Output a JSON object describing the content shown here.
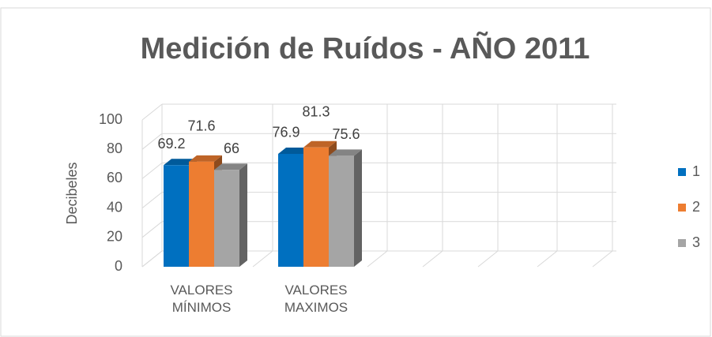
{
  "chart_data": {
    "type": "bar3d",
    "title": "Medición de Ruídos - AÑO 2011",
    "y_label": "Decibeles",
    "categories": [
      "VALORES MÍNIMOS",
      "VALORES MAXIMOS"
    ],
    "series": [
      {
        "name": "1",
        "color": "#0070c0",
        "values": [
          69.2,
          76.9
        ]
      },
      {
        "name": "2",
        "color": "#ed7d31",
        "values": [
          71.6,
          81.3
        ]
      },
      {
        "name": "3",
        "color": "#a5a5a5",
        "values": [
          66,
          75.6
        ]
      }
    ],
    "ylim": [
      0,
      100
    ],
    "yticks": [
      0,
      20,
      40,
      60,
      80,
      100
    ],
    "grid": true,
    "legend": "right"
  }
}
